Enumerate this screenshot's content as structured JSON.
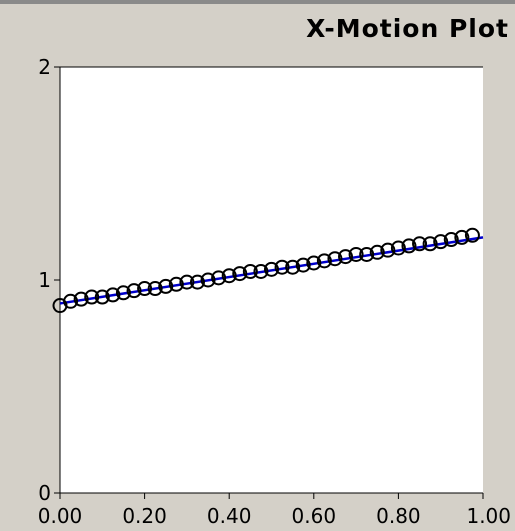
{
  "window": {
    "title": "X-Motion Plot"
  },
  "colors": {
    "background": "#d4d0c8",
    "plot_area": "#ffffff",
    "fit_line": "#0000cc",
    "markers": "#000000"
  },
  "chart_data": {
    "type": "scatter",
    "title": "X-Motion Plot",
    "xlabel": "",
    "ylabel": "",
    "xlim": [
      0,
      1
    ],
    "ylim": [
      0,
      2
    ],
    "grid": false,
    "x_ticks": [
      "0.00",
      "0.20",
      "0.40",
      "0.60",
      "0.80",
      "1.00"
    ],
    "y_ticks": [
      "0",
      "1",
      "2"
    ],
    "series": [
      {
        "marker": "open-circle",
        "x": [
          0.0,
          0.025,
          0.05,
          0.075,
          0.1,
          0.125,
          0.15,
          0.175,
          0.2,
          0.225,
          0.25,
          0.275,
          0.3,
          0.325,
          0.35,
          0.375,
          0.4,
          0.425,
          0.45,
          0.475,
          0.5,
          0.525,
          0.55,
          0.575,
          0.6,
          0.625,
          0.65,
          0.675,
          0.7,
          0.725,
          0.75,
          0.775,
          0.8,
          0.825,
          0.85,
          0.875,
          0.9,
          0.925,
          0.95,
          0.975
        ],
        "y": [
          0.88,
          0.9,
          0.91,
          0.92,
          0.92,
          0.93,
          0.94,
          0.95,
          0.96,
          0.96,
          0.97,
          0.98,
          0.99,
          0.99,
          1.0,
          1.01,
          1.02,
          1.03,
          1.04,
          1.04,
          1.05,
          1.06,
          1.06,
          1.07,
          1.08,
          1.09,
          1.1,
          1.11,
          1.12,
          1.12,
          1.13,
          1.14,
          1.15,
          1.16,
          1.17,
          1.17,
          1.18,
          1.19,
          1.2,
          1.21
        ]
      },
      {
        "style": "line",
        "x": [
          0.0,
          1.0
        ],
        "y": [
          0.89,
          1.2
        ]
      }
    ]
  }
}
